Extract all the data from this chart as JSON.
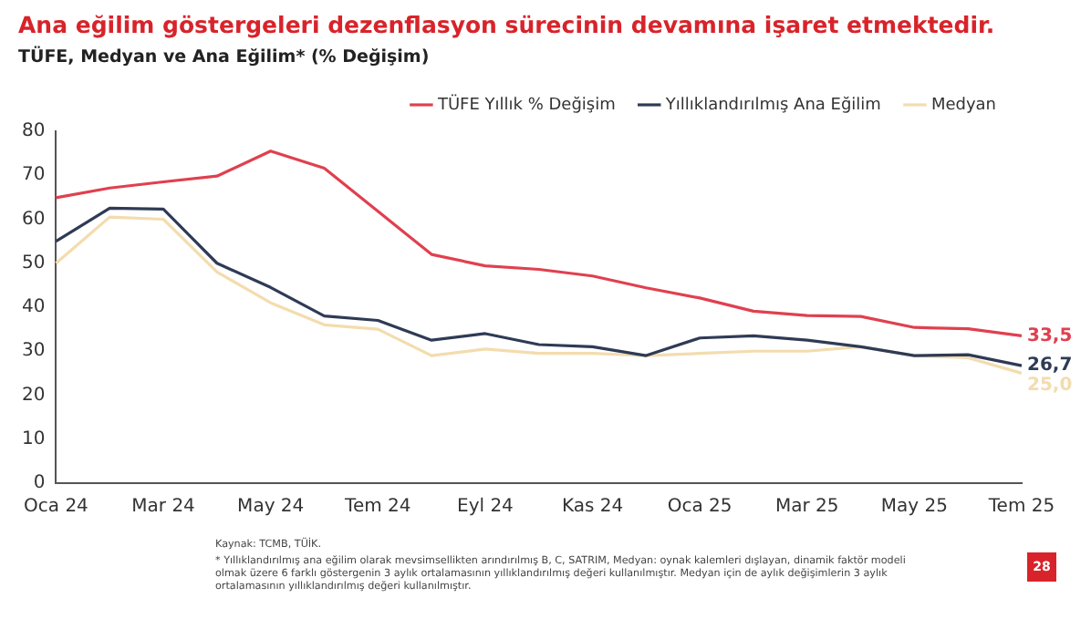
{
  "chart_data": {
    "type": "line",
    "title": "Ana eğilim göstergeleri dezenflasyon sürecinin devamına işaret etmektedir.",
    "subtitle": "TÜFE, Medyan ve Ana Eğilim* (% Değişim)",
    "categories": [
      "Oca 24",
      null,
      "Mar 24",
      null,
      "May 24",
      null,
      "Tem 24",
      null,
      "Eyl 24",
      null,
      "Kas 24",
      null,
      "Oca 25",
      null,
      "Mar 25",
      null,
      "May 25",
      null,
      "Tem 25"
    ],
    "series": [
      {
        "name": "TÜFE Yıllık % Değişim",
        "color": "#e0404f",
        "values": [
          64.9,
          67.1,
          68.5,
          69.8,
          75.5,
          71.6,
          61.8,
          52.0,
          49.4,
          48.6,
          47.1,
          44.4,
          42.1,
          39.1,
          38.1,
          37.9,
          35.4,
          35.1,
          33.5
        ],
        "value_labels": [
          null,
          null,
          null,
          null,
          null,
          null,
          null,
          null,
          null,
          null,
          null,
          null,
          null,
          null,
          null,
          null,
          null,
          null,
          "33,5"
        ]
      },
      {
        "name": "Yıllıklandırılmış Ana Eğilim",
        "color": "#2f3b55",
        "values": [
          55,
          62.5,
          62.3,
          50,
          44.5,
          38,
          37,
          32.5,
          34,
          31.5,
          31,
          29,
          33,
          33.5,
          32.5,
          31,
          29,
          29.2,
          26.7
        ],
        "value_labels": [
          null,
          null,
          null,
          null,
          null,
          null,
          null,
          null,
          null,
          null,
          null,
          null,
          null,
          null,
          null,
          null,
          null,
          null,
          "26,7"
        ]
      },
      {
        "name": "Medyan",
        "color": "#f3dcae",
        "values": [
          50,
          60.5,
          60,
          48,
          41,
          36,
          35,
          29,
          30.5,
          29.5,
          29.5,
          29,
          29.5,
          30,
          30,
          31,
          29,
          28.5,
          25.0
        ],
        "value_labels": [
          null,
          null,
          null,
          null,
          null,
          null,
          null,
          null,
          null,
          null,
          null,
          null,
          null,
          null,
          null,
          null,
          null,
          null,
          "25,0"
        ]
      }
    ],
    "ylim": [
      0,
      80
    ],
    "yticks": [
      0,
      10,
      20,
      30,
      40,
      50,
      60,
      70,
      80
    ],
    "grid": false,
    "legend": "top right",
    "marker": "none",
    "line_style": "solid",
    "annotations": [
      "Kaynak: TCMB, TÜİK.",
      "* Yıllıklandırılmış ana eğilim olarak mevsimsellikten arındırılmış B, C, SATRIM, Medyan: oynak kalemleri dışlayan, dinamik faktör modeli olmak üzere 6 farklı göstergenin 3 aylık ortalamasının yıllıklandırılmış değeri kullanılmıştır. Medyan için de aylık değişimlerin 3 aylık ortalamasının yıllıklandırılmış değeri kullanılmıştır.",
      "28"
    ]
  }
}
